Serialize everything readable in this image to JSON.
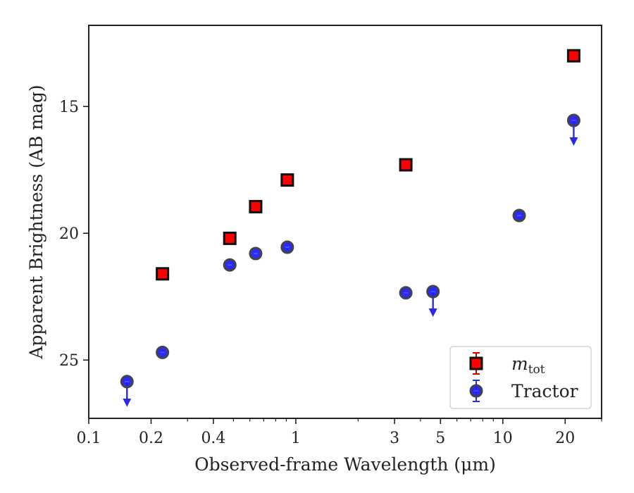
{
  "chart_data": {
    "type": "scatter",
    "xlabel": "Observed-frame Wavelength (μm)",
    "ylabel": "Apparent Brightness (AB mag)",
    "xscale": "log",
    "xlim": [
      0.1,
      30
    ],
    "ylim": [
      27.3,
      11.8
    ],
    "y_inverted": true,
    "x_ticks": [
      {
        "value": 0.1,
        "label": "0.1"
      },
      {
        "value": 0.2,
        "label": "0.2"
      },
      {
        "value": 0.4,
        "label": "0.4"
      },
      {
        "value": 1,
        "label": "1"
      },
      {
        "value": 3,
        "label": "3"
      },
      {
        "value": 5,
        "label": "5"
      },
      {
        "value": 10,
        "label": "10"
      },
      {
        "value": 20,
        "label": "20"
      }
    ],
    "y_ticks": [
      {
        "value": 15,
        "label": "15"
      },
      {
        "value": 20,
        "label": "20"
      },
      {
        "value": 25,
        "label": "25"
      }
    ],
    "legend": {
      "placement": "lower-right"
    },
    "series": [
      {
        "name": "m_tot",
        "name_main": "m",
        "name_sub": "tot",
        "marker": "square",
        "color": "#ff0000",
        "edge_color": "#111111",
        "errorbar_color": "#cc0000",
        "points": [
          {
            "x": 0.227,
            "y": 21.6
          },
          {
            "x": 0.48,
            "y": 20.2
          },
          {
            "x": 0.64,
            "y": 18.95
          },
          {
            "x": 0.91,
            "y": 17.9
          },
          {
            "x": 3.4,
            "y": 17.3
          },
          {
            "x": 22.0,
            "y": 13.0
          }
        ]
      },
      {
        "name": "Tractor",
        "marker": "circle",
        "color": "#1f1fff",
        "edge_color": "#444444",
        "errorbar_color": "#2a2ae6",
        "points": [
          {
            "x": 0.153,
            "y": 25.85,
            "upper_limit": true
          },
          {
            "x": 0.227,
            "y": 24.7
          },
          {
            "x": 0.48,
            "y": 21.25
          },
          {
            "x": 0.64,
            "y": 20.8
          },
          {
            "x": 0.91,
            "y": 20.55
          },
          {
            "x": 3.4,
            "y": 22.35
          },
          {
            "x": 4.6,
            "y": 22.3,
            "upper_limit": true
          },
          {
            "x": 12.0,
            "y": 19.3
          },
          {
            "x": 22.0,
            "y": 15.55,
            "upper_limit": true
          }
        ]
      }
    ]
  }
}
